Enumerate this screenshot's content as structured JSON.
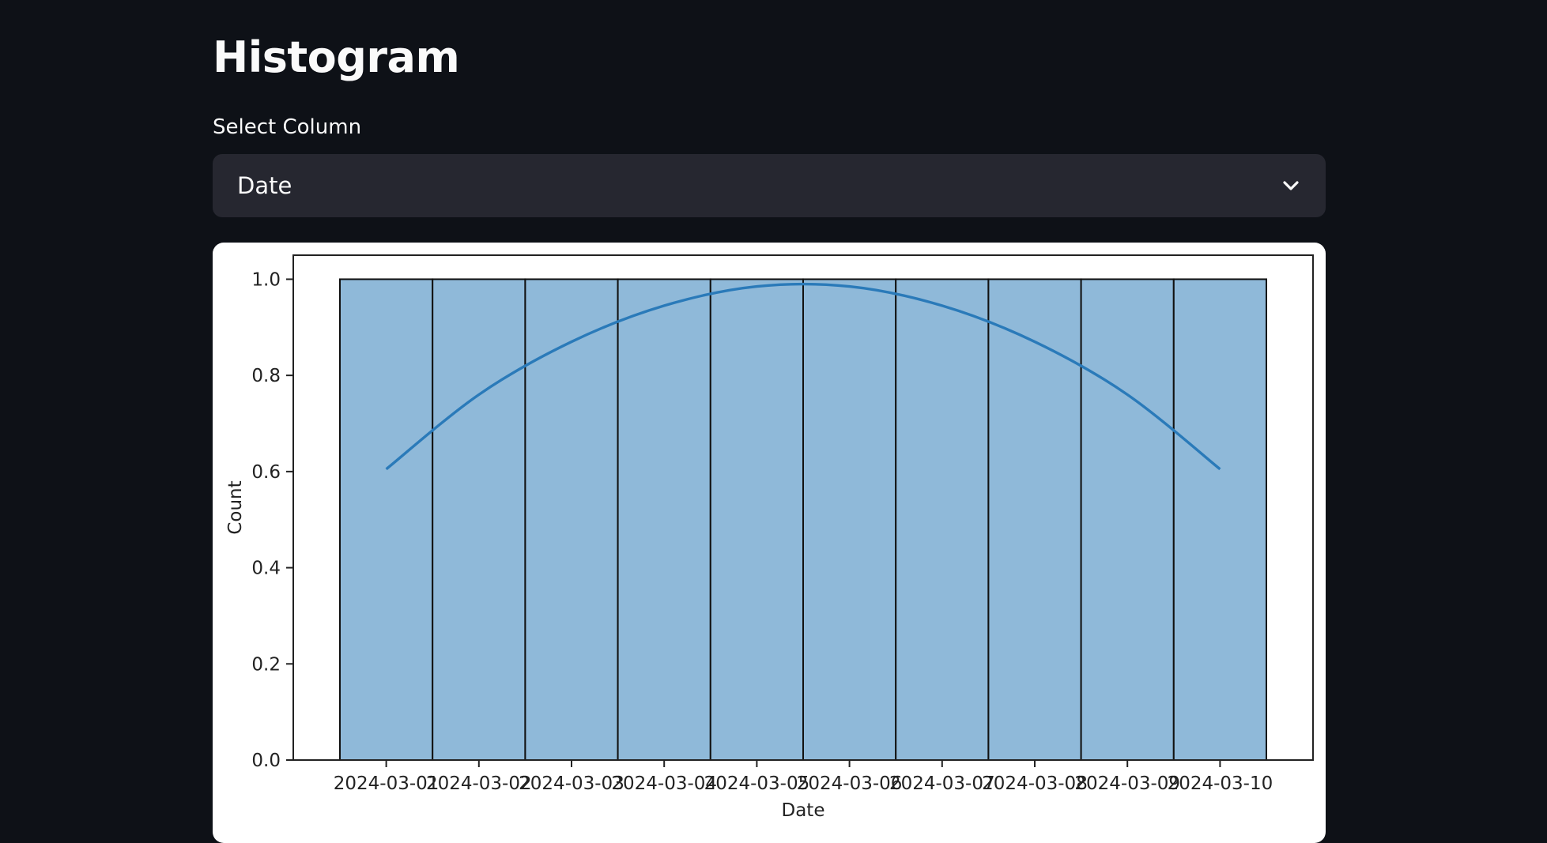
{
  "page": {
    "title": "Histogram"
  },
  "select": {
    "label": "Select Column",
    "value": "Date",
    "icon": "chevron-down-icon"
  },
  "colors": {
    "background": "#0e1117",
    "select_bg": "#262730",
    "bar_fill": "#8fb9d9",
    "kde_line": "#2a7ab9"
  },
  "chart_data": {
    "type": "bar",
    "xlabel": "Date",
    "ylabel": "Count",
    "ylim": [
      0,
      1.05
    ],
    "yticks": [
      "0.0",
      "0.2",
      "0.4",
      "0.6",
      "0.8",
      "1.0"
    ],
    "yticks_values": [
      0,
      0.2,
      0.4,
      0.6,
      0.8,
      1.0
    ],
    "categories": [
      "2024-03-01",
      "2024-03-02",
      "2024-03-03",
      "2024-03-04",
      "2024-03-05",
      "2024-03-06",
      "2024-03-07",
      "2024-03-08",
      "2024-03-09",
      "2024-03-10"
    ],
    "values": [
      1,
      1,
      1,
      1,
      1,
      1,
      1,
      1,
      1,
      1
    ],
    "kde": {
      "x": [
        "2024-03-01",
        "2024-03-02",
        "2024-03-03",
        "2024-03-04",
        "2024-03-05",
        "2024-03-06",
        "2024-03-07",
        "2024-03-08",
        "2024-03-09",
        "2024-03-10"
      ],
      "y": [
        0.605,
        0.76,
        0.87,
        0.945,
        0.985,
        0.985,
        0.945,
        0.87,
        0.76,
        0.605
      ]
    },
    "grid": false
  }
}
